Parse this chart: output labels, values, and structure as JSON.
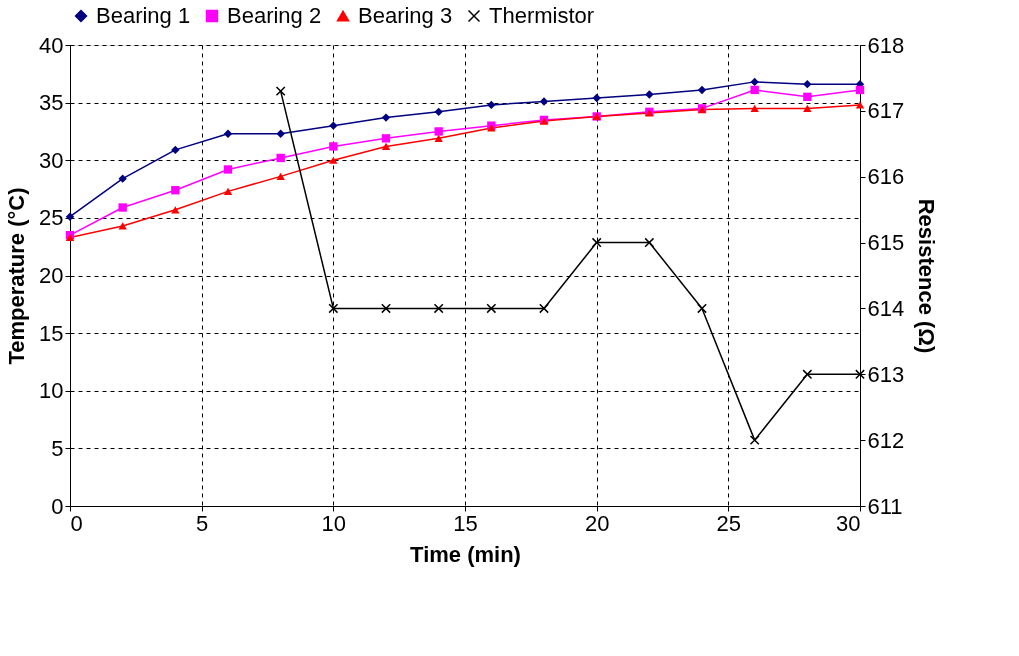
{
  "chart_data": {
    "type": "line",
    "xlabel": "Time (min)",
    "ylabel": "Temperature (°C)",
    "y2label": "Resistence (Ω)",
    "xlim": [
      0,
      30
    ],
    "xticks": [
      0,
      5,
      10,
      15,
      20,
      25,
      30
    ],
    "ylim": [
      0,
      40
    ],
    "yticks": [
      0,
      5,
      10,
      15,
      20,
      25,
      30,
      35,
      40
    ],
    "y2lim": [
      611,
      618
    ],
    "y2ticks": [
      611,
      612,
      613,
      614,
      615,
      616,
      617,
      618
    ],
    "grid": true,
    "legend": "top",
    "x": [
      0,
      2,
      4,
      6,
      8,
      10,
      12,
      14,
      16,
      18,
      20,
      22,
      24,
      26,
      28,
      30
    ],
    "series": [
      {
        "name": "Bearing 1",
        "color": "#000080",
        "marker": "diamond",
        "values": [
          25.1,
          28.4,
          30.9,
          32.3,
          32.3,
          33.0,
          33.7,
          34.2,
          34.8,
          35.1,
          35.4,
          35.7,
          36.1,
          36.8,
          36.6,
          36.6
        ]
      },
      {
        "name": "Bearing 2",
        "color": "#ff00ff",
        "marker": "square",
        "values": [
          23.5,
          25.9,
          27.4,
          29.2,
          30.2,
          31.2,
          31.9,
          32.5,
          33.0,
          33.5,
          33.8,
          34.2,
          34.5,
          36.1,
          35.5,
          36.1
        ]
      },
      {
        "name": "Bearing 3",
        "color": "#ff0000",
        "marker": "triangle",
        "values": [
          23.3,
          24.3,
          25.7,
          27.3,
          28.6,
          30.0,
          31.2,
          31.9,
          32.8,
          33.4,
          33.8,
          34.1,
          34.4,
          34.5,
          34.5,
          34.8
        ]
      },
      {
        "name": "Thermistor",
        "color": "#000000",
        "marker": "cross",
        "axis": "y2",
        "x": [
          8,
          10,
          12,
          14,
          16,
          18,
          20,
          22,
          24,
          26,
          28,
          30
        ],
        "values": [
          617.3,
          614,
          614,
          614,
          614,
          614,
          615,
          615,
          614,
          612,
          613,
          613
        ]
      }
    ]
  }
}
